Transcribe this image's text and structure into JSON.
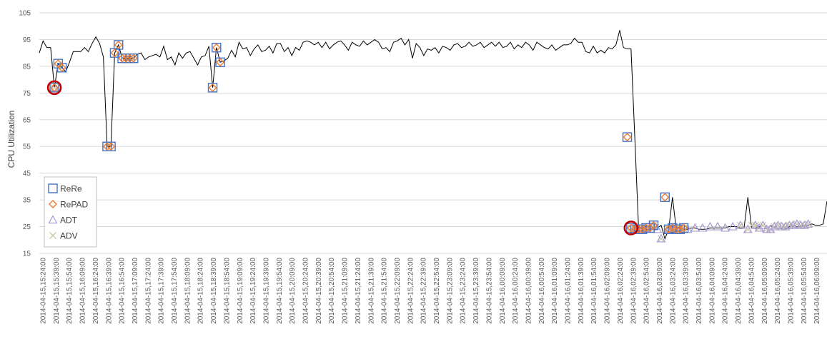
{
  "chart_data": {
    "type": "line",
    "title": "",
    "xlabel": "",
    "ylabel": "CPU Utilization",
    "ylim": [
      15,
      105
    ],
    "yticks": [
      15,
      25,
      35,
      45,
      55,
      65,
      75,
      85,
      95,
      105
    ],
    "grid": true,
    "legend_position": "bottom-left",
    "x_tick_labels": [
      "2014-04-15,15:24:00",
      "2014-04-15,15:39:00",
      "2014-04-15,15:54:00",
      "2014-04-15,16:09:00",
      "2014-04-15,16:24:00",
      "2014-04-15,16:39:00",
      "2014-04-15,16:54:00",
      "2014-04-15,17:09:00",
      "2014-04-15,17:24:00",
      "2014-04-15,17:39:00",
      "2014-04-15,17:54:00",
      "2014-04-15,18:09:00",
      "2014-04-15,18:24:00",
      "2014-04-15,18:39:00",
      "2014-04-15,18:54:00",
      "2014-04-15,19:09:00",
      "2014-04-15,19:24:00",
      "2014-04-15,19:39:00",
      "2014-04-15,19:54:00",
      "2014-04-15,20:09:00",
      "2014-04-15,20:24:00",
      "2014-04-15,20:39:00",
      "2014-04-15,20:54:00",
      "2014-04-15,21:09:00",
      "2014-04-15,21:24:00",
      "2014-04-15,21:39:00",
      "2014-04-15,21:54:00",
      "2014-04-15,22:09:00",
      "2014-04-15,22:24:00",
      "2014-04-15,22:39:00",
      "2014-04-15,22:54:00",
      "2014-04-15,23:09:00",
      "2014-04-15,23:24:00",
      "2014-04-15,23:39:00",
      "2014-04-15,23:54:00",
      "2014-04-16,00:09:00",
      "2014-04-16,00:24:00",
      "2014-04-16,00:39:00",
      "2014-04-16,00:54:00",
      "2014-04-16,01:09:00",
      "2014-04-16,01:24:00",
      "2014-04-16,01:39:00",
      "2014-04-16,01:54:00",
      "2014-04-16,02:09:00",
      "2014-04-16,02:24:00",
      "2014-04-16,02:39:00",
      "2014-04-16,02:54:00",
      "2014-04-16,03:09:00",
      "2014-04-16,03:24:00",
      "2014-04-16,03:39:00",
      "2014-04-16,03:54:00",
      "2014-04-16,04:09:00",
      "2014-04-16,04:24:00",
      "2014-04-16,04:39:00",
      "2014-04-16,04:54:00",
      "2014-04-16,05:09:00",
      "2014-04-16,05:24:00",
      "2014-04-16,05:39:00",
      "2014-04-16,05:54:00",
      "2014-04-16,06:09:00"
    ],
    "series": [
      {
        "name": "",
        "style": "line",
        "color": "#000000",
        "values": [
          90,
          94.5,
          92,
          92,
          77,
          86,
          84.5,
          83,
          86.5,
          90.5,
          90.5,
          90.5,
          92,
          90.5,
          93.5,
          96,
          93.5,
          88.5,
          55,
          55,
          90,
          93,
          88,
          88,
          88,
          88,
          89.5,
          90,
          87.5,
          88.5,
          89,
          89.5,
          88.5,
          92.5,
          87.5,
          88.5,
          85.5,
          90,
          88,
          90,
          90.5,
          88,
          85.5,
          88.5,
          89,
          92.5,
          77,
          92,
          86.5,
          87,
          88,
          91,
          88.5,
          94,
          91.5,
          92,
          89,
          91.5,
          93,
          90.5,
          91,
          92.5,
          90,
          93.5,
          93.5,
          90.5,
          92,
          89,
          92,
          91,
          94,
          94.5,
          94,
          93,
          94,
          92,
          94,
          91.5,
          93,
          94,
          94.5,
          93,
          91,
          94,
          93,
          92.5,
          94.5,
          93,
          94,
          95,
          94,
          91.5,
          92,
          90.5,
          94,
          94.5,
          95.5,
          93,
          95,
          88,
          93.5,
          92,
          89,
          91.5,
          91,
          92,
          90,
          92.5,
          92,
          91,
          93,
          93.5,
          92,
          92.5,
          94,
          92.5,
          93,
          94,
          92,
          93,
          94,
          92.5,
          94,
          92,
          92.5,
          94,
          91.5,
          93,
          92,
          94,
          93,
          91,
          94,
          93,
          92,
          91.5,
          93,
          91,
          92,
          93,
          93,
          93.5,
          95.5,
          94,
          94,
          90.5,
          90,
          92.5,
          90,
          91,
          90,
          92,
          91.5,
          93,
          98.5,
          92,
          91.5,
          91.5,
          58.5,
          24.5,
          24,
          24,
          24,
          24.5,
          24.5,
          25.5,
          20.5,
          24,
          36,
          24,
          24.5,
          24,
          24,
          24.5,
          24.5,
          24,
          24,
          24,
          24.5,
          24.5,
          24.5,
          24.5,
          24.5,
          25,
          25,
          25,
          24.5,
          24.5,
          36,
          24.5,
          24.5,
          25,
          25.5,
          24,
          25.5,
          24.5,
          25.5,
          24,
          24,
          25,
          25.5,
          25,
          25,
          25.5,
          25.5,
          26,
          25.5,
          25.5,
          26,
          34.5
        ]
      },
      {
        "name": "ReRe",
        "style": "marker",
        "marker": "square",
        "color": "#4472c4",
        "points": [
          [
            4,
            77
          ],
          [
            5,
            86
          ],
          [
            6,
            84.5
          ],
          [
            18,
            55
          ],
          [
            19,
            55
          ],
          [
            20,
            90
          ],
          [
            21,
            93
          ],
          [
            22,
            88
          ],
          [
            23,
            88
          ],
          [
            24,
            88
          ],
          [
            25,
            88
          ],
          [
            46,
            77
          ],
          [
            47,
            92
          ],
          [
            48,
            86.5
          ],
          [
            156,
            58.5
          ],
          [
            157,
            24.5
          ],
          [
            158,
            24
          ],
          [
            159,
            24
          ],
          [
            160,
            24
          ],
          [
            161,
            24.5
          ],
          [
            162,
            24.5
          ],
          [
            163,
            25.5
          ],
          [
            166,
            36
          ],
          [
            167,
            24
          ],
          [
            168,
            24.5
          ],
          [
            169,
            24
          ],
          [
            170,
            24
          ],
          [
            171,
            24.5
          ]
        ]
      },
      {
        "name": "RePAD",
        "style": "marker",
        "marker": "diamond",
        "color": "#ed7d31",
        "points": [
          [
            4,
            77
          ],
          [
            5,
            86
          ],
          [
            6,
            84.5
          ],
          [
            18,
            55
          ],
          [
            19,
            55
          ],
          [
            20,
            90
          ],
          [
            21,
            93
          ],
          [
            22,
            88
          ],
          [
            23,
            88
          ],
          [
            24,
            88
          ],
          [
            25,
            88
          ],
          [
            46,
            77
          ],
          [
            47,
            92
          ],
          [
            48,
            86.5
          ],
          [
            156,
            58.5
          ],
          [
            157,
            24.5
          ],
          [
            158,
            24
          ],
          [
            159,
            24
          ],
          [
            160,
            24
          ],
          [
            161,
            24.5
          ],
          [
            162,
            24.5
          ],
          [
            163,
            25.5
          ],
          [
            166,
            36
          ],
          [
            167,
            24
          ],
          [
            168,
            24.5
          ],
          [
            169,
            24
          ],
          [
            170,
            24
          ],
          [
            171,
            24.5
          ]
        ]
      },
      {
        "name": "ADT",
        "style": "marker",
        "marker": "triangle",
        "color": "#a99bd4",
        "points": [
          [
            4,
            77
          ],
          [
            158,
            24
          ],
          [
            160,
            24
          ],
          [
            161,
            24.5
          ],
          [
            163,
            25.5
          ],
          [
            164,
            24
          ],
          [
            165,
            20.5
          ],
          [
            167,
            24
          ],
          [
            168,
            24.5
          ],
          [
            170,
            24
          ],
          [
            172,
            24
          ],
          [
            174,
            24.5
          ],
          [
            176,
            24.5
          ],
          [
            178,
            25
          ],
          [
            180,
            25
          ],
          [
            182,
            24.5
          ],
          [
            184,
            25
          ],
          [
            186,
            25.5
          ],
          [
            188,
            24
          ],
          [
            190,
            25.5
          ],
          [
            191,
            24.5
          ],
          [
            192,
            25.5
          ],
          [
            193,
            24
          ],
          [
            194,
            24
          ],
          [
            195,
            25
          ],
          [
            196,
            25.5
          ],
          [
            197,
            25
          ],
          [
            198,
            25
          ],
          [
            199,
            25.5
          ],
          [
            200,
            25.5
          ],
          [
            201,
            26
          ],
          [
            202,
            25.5
          ],
          [
            203,
            25.5
          ],
          [
            204,
            26
          ]
        ]
      },
      {
        "name": "ADV",
        "style": "marker",
        "marker": "x",
        "color": "#c9c9a0",
        "points": [
          [
            4,
            77
          ],
          [
            157,
            24.5
          ],
          [
            159,
            24
          ],
          [
            161,
            24.5
          ],
          [
            163,
            25.5
          ],
          [
            165,
            20.5
          ],
          [
            167,
            24
          ],
          [
            169,
            24
          ],
          [
            171,
            24.5
          ],
          [
            186,
            25.5
          ],
          [
            188,
            24
          ],
          [
            189,
            25.5
          ],
          [
            190,
            25.5
          ],
          [
            191,
            24.5
          ],
          [
            192,
            25.5
          ],
          [
            193,
            24
          ],
          [
            194,
            24
          ],
          [
            195,
            25
          ],
          [
            196,
            25.5
          ],
          [
            197,
            25
          ],
          [
            198,
            25
          ],
          [
            199,
            25.5
          ],
          [
            200,
            25.5
          ],
          [
            201,
            26
          ],
          [
            202,
            25.5
          ],
          [
            203,
            25.5
          ],
          [
            204,
            26
          ]
        ]
      }
    ],
    "highlights": [
      {
        "index": 4,
        "value": 77,
        "color": "#c00000"
      },
      {
        "index": 157,
        "value": 24.5,
        "color": "#c00000"
      }
    ]
  }
}
